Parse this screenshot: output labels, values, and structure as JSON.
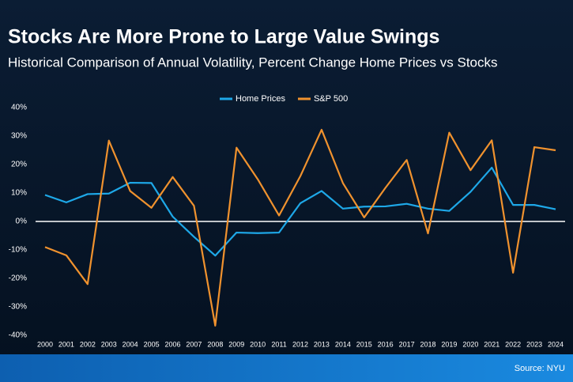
{
  "chart_data": {
    "type": "line",
    "title": "Stocks Are More Prone to Large Value Swings",
    "subtitle": "Historical Comparison of Annual Volatility, Percent Change Home Prices vs Stocks",
    "categories": [
      "2000",
      "2001",
      "2002",
      "2003",
      "2004",
      "2005",
      "2006",
      "2007",
      "2008",
      "2009",
      "2010",
      "2011",
      "2012",
      "2013",
      "2014",
      "2015",
      "2016",
      "2017",
      "2018",
      "2019",
      "2020",
      "2021",
      "2022",
      "2023",
      "2024"
    ],
    "series": [
      {
        "name": "Home Prices",
        "color": "#1ea8e8",
        "values": [
          9.3,
          6.7,
          9.6,
          9.8,
          13.6,
          13.5,
          1.7,
          -5.4,
          -12.0,
          -3.9,
          -4.1,
          -3.9,
          6.4,
          10.7,
          4.5,
          5.2,
          5.3,
          6.2,
          4.5,
          3.7,
          10.4,
          18.9,
          5.8,
          5.8,
          4.3
        ]
      },
      {
        "name": "S&P 500",
        "color": "#f0922e",
        "values": [
          -9.0,
          -11.9,
          -22.0,
          28.4,
          10.7,
          4.8,
          15.6,
          5.5,
          -36.6,
          25.9,
          14.8,
          2.1,
          15.9,
          32.2,
          13.5,
          1.4,
          11.8,
          21.6,
          -4.2,
          31.2,
          18.0,
          28.5,
          -18.0,
          26.1,
          25.0
        ]
      }
    ],
    "ylim": [
      -40,
      40
    ],
    "yticks": [
      {
        "value": -40,
        "label": "-40%"
      },
      {
        "value": -30,
        "label": "-30%"
      },
      {
        "value": -20,
        "label": "-20%"
      },
      {
        "value": -10,
        "label": "-10%"
      },
      {
        "value": 0,
        "label": "0%"
      },
      {
        "value": 10,
        "label": "10%"
      },
      {
        "value": 20,
        "label": "20%"
      },
      {
        "value": 30,
        "label": "30%"
      },
      {
        "value": 40,
        "label": "40%"
      }
    ],
    "grid": false,
    "legend": "top",
    "source": "Source: NYU"
  }
}
